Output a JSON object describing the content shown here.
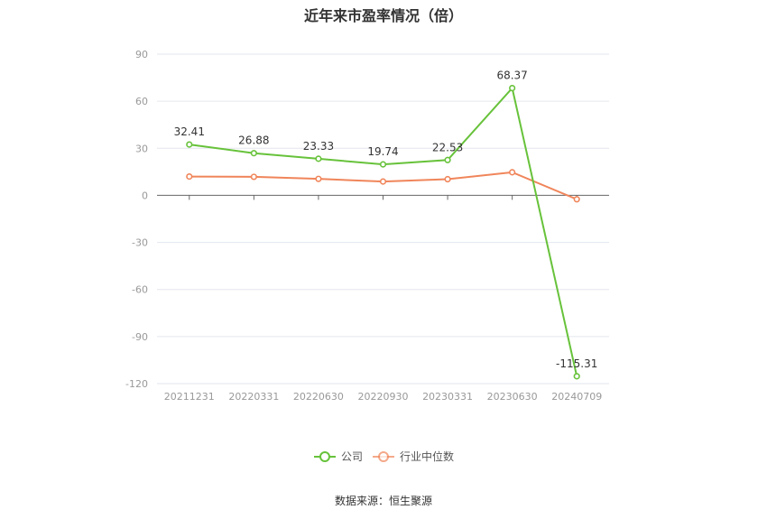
{
  "chart_data": {
    "type": "line",
    "title": "近年来市盈率情况（倍）",
    "categories": [
      "20211231",
      "20220331",
      "20220630",
      "20220930",
      "20230331",
      "20230630",
      "20240709"
    ],
    "series": [
      {
        "name": "公司",
        "values": [
          32.41,
          26.88,
          23.33,
          19.74,
          22.53,
          68.37,
          -115.31
        ],
        "color": "#67c23a"
      },
      {
        "name": "行业中位数",
        "values": [
          12.0,
          11.8,
          10.5,
          8.8,
          10.3,
          14.7,
          -2.5
        ],
        "color": "#f0855a"
      }
    ],
    "data_labels": [
      "32.41",
      "26.88",
      "23.33",
      "19.74",
      "22.53",
      "68.37",
      "-115.31"
    ],
    "ylim": [
      -120,
      90
    ],
    "yticks": [
      "90",
      "60",
      "30",
      "0",
      "-30",
      "-60",
      "-90",
      "-120"
    ],
    "grid": true,
    "legend_position": "bottom"
  },
  "source": "数据来源：恒生聚源"
}
